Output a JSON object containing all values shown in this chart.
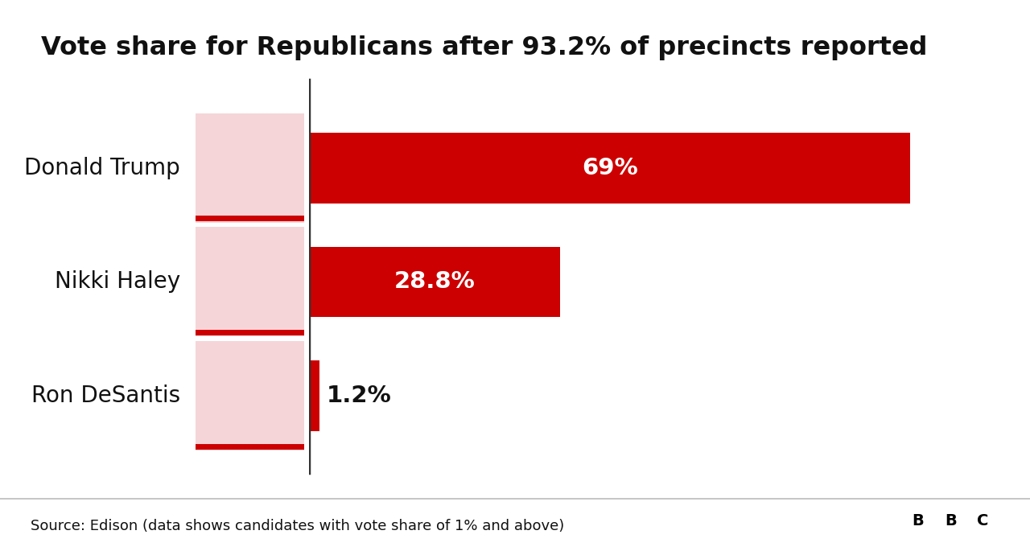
{
  "title": "Vote share for Republicans after 93.2% of precincts reported",
  "candidates": [
    "Donald Trump",
    "Nikki Haley",
    "Ron DeSantis"
  ],
  "values": [
    69.0,
    28.8,
    1.2
  ],
  "labels": [
    "69%",
    "28.8%",
    "1.2%"
  ],
  "bar_color": "#cc0000",
  "bar_height": 0.62,
  "xlim_left": -22,
  "xlim_right": 78,
  "source_text": "Source: Edison (data shows candidates with vote share of 1% and above)",
  "background_color": "#ffffff",
  "title_fontsize": 23,
  "label_fontsize": 21,
  "name_fontsize": 20,
  "source_fontsize": 13,
  "label_color_inside": "#ffffff",
  "label_color_outside": "#111111",
  "image_bg_color": "#f5d5d8",
  "image_border_color": "#cc0000",
  "footer_line_color": "#bbbbbb",
  "axis_line_color": "#333333"
}
